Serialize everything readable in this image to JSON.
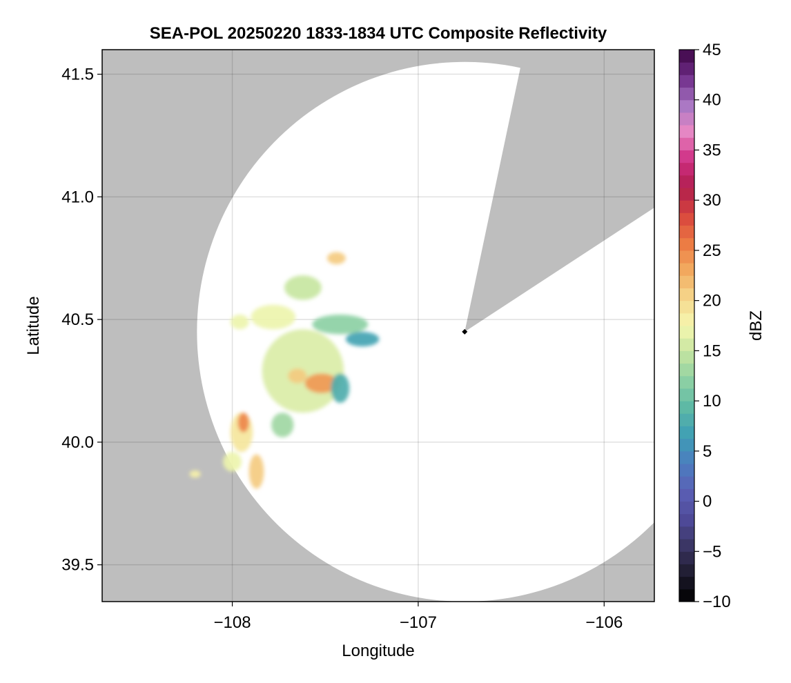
{
  "chart_data": {
    "type": "heatmap",
    "title": "SEA-POL 20250220 1833-1834 UTC Composite Reflectivity",
    "xlabel": "Longitude",
    "ylabel": "Latitude",
    "xlim": [
      -108.7,
      -105.73
    ],
    "ylim": [
      39.35,
      41.6
    ],
    "grid": true,
    "xticks": [
      -108,
      -107,
      -106
    ],
    "xtick_labels": [
      "−108",
      "−107",
      "−106"
    ],
    "yticks": [
      39.5,
      40.0,
      40.5,
      41.0,
      41.5
    ],
    "ytick_labels": [
      "39.5",
      "40.0",
      "40.5",
      "41.0",
      "41.5"
    ],
    "background_color": "#bebebe",
    "coverage_color": "#ffffff",
    "radar": {
      "lon": -106.75,
      "lat": 40.45,
      "range_lon_deg": 1.44,
      "range_lat_deg": 1.1,
      "blocked_sector_deg": [
        12,
        57
      ]
    },
    "colorbar": {
      "label": "dBZ",
      "vmin": -10,
      "vmax": 45,
      "ticks": [
        -10,
        -5,
        0,
        5,
        10,
        15,
        20,
        25,
        30,
        35,
        40,
        45
      ],
      "tick_labels": [
        "−10",
        "−5",
        "0",
        "5",
        "10",
        "15",
        "20",
        "25",
        "30",
        "35",
        "40",
        "45"
      ],
      "colormap": [
        "#000000",
        "#1e1b2e",
        "#3a3562",
        "#4f4a99",
        "#5a5fb5",
        "#4c7dbf",
        "#3e9eb5",
        "#5cb8a5",
        "#8cd0a4",
        "#c2e4a0",
        "#f6f7b0",
        "#f5d78c",
        "#f2aa5f",
        "#ec7a43",
        "#d8463d",
        "#b01e4e",
        "#cf2e83",
        "#e888c4",
        "#a877c4",
        "#702e8a",
        "#3d0646"
      ]
    },
    "features": [
      {
        "name": "main storm cell",
        "lon": -107.62,
        "lat": 40.29,
        "rx": 0.22,
        "ry": 0.17,
        "dbz": 16
      },
      {
        "name": "main storm core",
        "lon": -107.52,
        "lat": 40.24,
        "rx": 0.09,
        "ry": 0.04,
        "dbz": 24
      },
      {
        "name": "storm core 2",
        "lon": -107.65,
        "lat": 40.27,
        "rx": 0.05,
        "ry": 0.03,
        "dbz": 21
      },
      {
        "name": "eastern storm edge",
        "lon": -107.42,
        "lat": 40.22,
        "rx": 0.05,
        "ry": 0.06,
        "dbz": 8
      },
      {
        "name": "north-east band",
        "lon": -107.42,
        "lat": 40.48,
        "rx": 0.15,
        "ry": 0.04,
        "dbz": 12
      },
      {
        "name": "north-east band tail",
        "lon": -107.3,
        "lat": 40.42,
        "rx": 0.09,
        "ry": 0.03,
        "dbz": 7
      },
      {
        "name": "northern cells",
        "lon": -107.62,
        "lat": 40.63,
        "rx": 0.1,
        "ry": 0.05,
        "dbz": 15
      },
      {
        "name": "north-west cell",
        "lon": -107.78,
        "lat": 40.51,
        "rx": 0.12,
        "ry": 0.05,
        "dbz": 17
      },
      {
        "name": "western cell",
        "lon": -107.96,
        "lat": 40.49,
        "rx": 0.05,
        "ry": 0.03,
        "dbz": 17
      },
      {
        "name": "top cell",
        "lon": -107.44,
        "lat": 40.75,
        "rx": 0.05,
        "ry": 0.025,
        "dbz": 21
      },
      {
        "name": "south-west band",
        "lon": -107.95,
        "lat": 40.04,
        "rx": 0.06,
        "ry": 0.08,
        "dbz": 19
      },
      {
        "name": "south-west core",
        "lon": -107.94,
        "lat": 40.08,
        "rx": 0.03,
        "ry": 0.04,
        "dbz": 25
      },
      {
        "name": "south cell",
        "lon": -107.87,
        "lat": 39.88,
        "rx": 0.04,
        "ry": 0.07,
        "dbz": 21
      },
      {
        "name": "south-west small cell",
        "lon": -108.0,
        "lat": 39.92,
        "rx": 0.05,
        "ry": 0.04,
        "dbz": 17
      },
      {
        "name": "south-east fragments",
        "lon": -107.73,
        "lat": 40.07,
        "rx": 0.06,
        "ry": 0.05,
        "dbz": 13
      },
      {
        "name": "far south-west cell",
        "lon": -108.2,
        "lat": 39.87,
        "rx": 0.03,
        "ry": 0.015,
        "dbz": 18
      }
    ]
  }
}
